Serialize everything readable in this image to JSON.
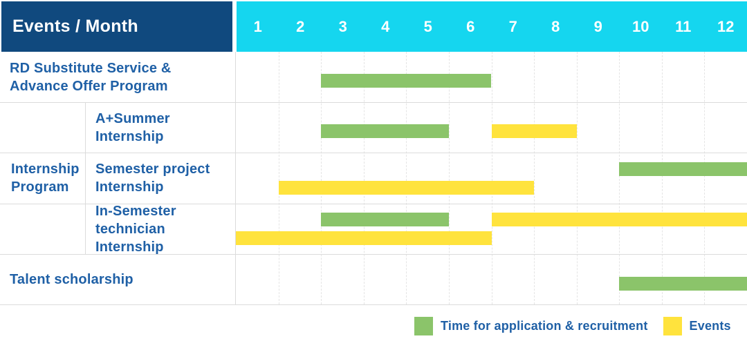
{
  "table": {
    "header": {
      "title": "Events / Month",
      "months": [
        "1",
        "2",
        "3",
        "4",
        "5",
        "6",
        "7",
        "8",
        "9",
        "10",
        "11",
        "12"
      ]
    },
    "group": {
      "label": "Internship Program",
      "label_lines": [
        "Internship",
        "Program"
      ]
    },
    "rows": [
      {
        "label": "RD Substitute Service & Advance Offer Program",
        "label_lines": [
          "RD Substitute Service &",
          "Advance Offer Program"
        ]
      },
      {
        "label": "A+Summer Internship",
        "label_lines": [
          "A+Summer",
          "Internship"
        ]
      },
      {
        "label": "Semester project Internship",
        "label_lines": [
          "Semester project",
          "Internship"
        ]
      },
      {
        "label": "In-Semester technician Internship",
        "label_lines": [
          "In-Semester",
          "technician Internship"
        ]
      },
      {
        "label": "Talent scholarship",
        "label_lines": [
          "Talent scholarship"
        ]
      }
    ]
  },
  "legend": {
    "items": [
      {
        "key": "application",
        "label": "Time for application & recruitment",
        "color": "#8BC46A"
      },
      {
        "key": "events",
        "label": "Events",
        "color": "#FFE33D"
      }
    ]
  },
  "colors": {
    "header_navy": "#10497E",
    "header_cyan": "#15D6EF",
    "bar_green": "#8BC46A",
    "bar_yellow": "#FFE33D",
    "text_blue": "#1F60A6",
    "border": "#DBDBDB",
    "gridline": "#E4E4E4"
  },
  "chart_data": {
    "type": "bar",
    "subtype": "gantt",
    "title": "Events / Month",
    "x": {
      "label": "Month",
      "categories": [
        "1",
        "2",
        "3",
        "4",
        "5",
        "6",
        "7",
        "8",
        "9",
        "10",
        "11",
        "12"
      ],
      "range": [
        1,
        12
      ]
    },
    "grid": "dashed-vertical-month-lines",
    "legend_position": "bottom-right",
    "legend_entries": [
      "Time for application & recruitment",
      "Events"
    ],
    "series_colors": {
      "Time for application & recruitment": "#8BC46A",
      "Events": "#FFE33D"
    },
    "rows": [
      {
        "label": "RD Substitute Service & Advance Offer Program",
        "group": null,
        "bars": [
          {
            "series": "Time for application & recruitment",
            "start_month": 3,
            "end_month": 6,
            "lane": "mid"
          }
        ]
      },
      {
        "label": "A+Summer Internship",
        "group": "Internship Program",
        "bars": [
          {
            "series": "Time for application & recruitment",
            "start_month": 3,
            "end_month": 5,
            "lane": "mid"
          },
          {
            "series": "Events",
            "start_month": 7,
            "end_month": 8,
            "lane": "mid"
          }
        ]
      },
      {
        "label": "Semester project Internship",
        "group": "Internship Program",
        "bars": [
          {
            "series": "Time for application & recruitment",
            "start_month": 10,
            "end_month": 12,
            "lane": "top"
          },
          {
            "series": "Events",
            "start_month": 2,
            "end_month": 7,
            "lane": "bottom"
          }
        ]
      },
      {
        "label": "In-Semester technician Internship",
        "group": "Internship Program",
        "bars": [
          {
            "series": "Time for application & recruitment",
            "start_month": 3,
            "end_month": 5,
            "lane": "top"
          },
          {
            "series": "Events",
            "start_month": 7,
            "end_month": 12,
            "lane": "top"
          },
          {
            "series": "Events",
            "start_month": 1,
            "end_month": 6,
            "lane": "bottom"
          }
        ]
      },
      {
        "label": "Talent scholarship",
        "group": null,
        "bars": [
          {
            "series": "Time for application & recruitment",
            "start_month": 10,
            "end_month": 12,
            "lane": "mid"
          }
        ]
      }
    ]
  }
}
